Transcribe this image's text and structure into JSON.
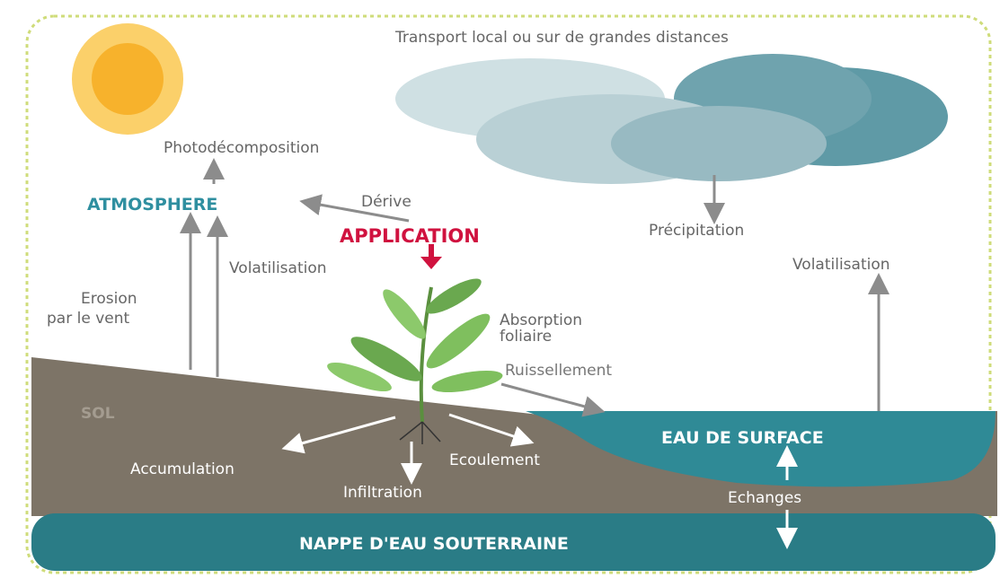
{
  "title": "Transport local ou sur de grandes distances",
  "atmosphere": {
    "photodecomposition": "Photodécomposition",
    "label": "ATMOSPHERE",
    "derive": "Dérive",
    "precipitation": "Précipitation"
  },
  "application": "APPLICATION",
  "processes": {
    "volatilisation_left": "Volatilisation",
    "volatilisation_right": "Volatilisation",
    "erosion": [
      "Erosion",
      "par le vent"
    ],
    "absorption": [
      "Absorption",
      "foliaire"
    ],
    "ruissellement": "Ruissellement",
    "accumulation": "Accumulation",
    "infiltration": "Infiltration",
    "ecoulement": "Ecoulement",
    "echanges": "Echanges"
  },
  "zones": {
    "sol": "SOL",
    "eau_surface": "EAU DE SURFACE",
    "nappe": "NAPPE D'EAU SOUTERRAINE"
  }
}
